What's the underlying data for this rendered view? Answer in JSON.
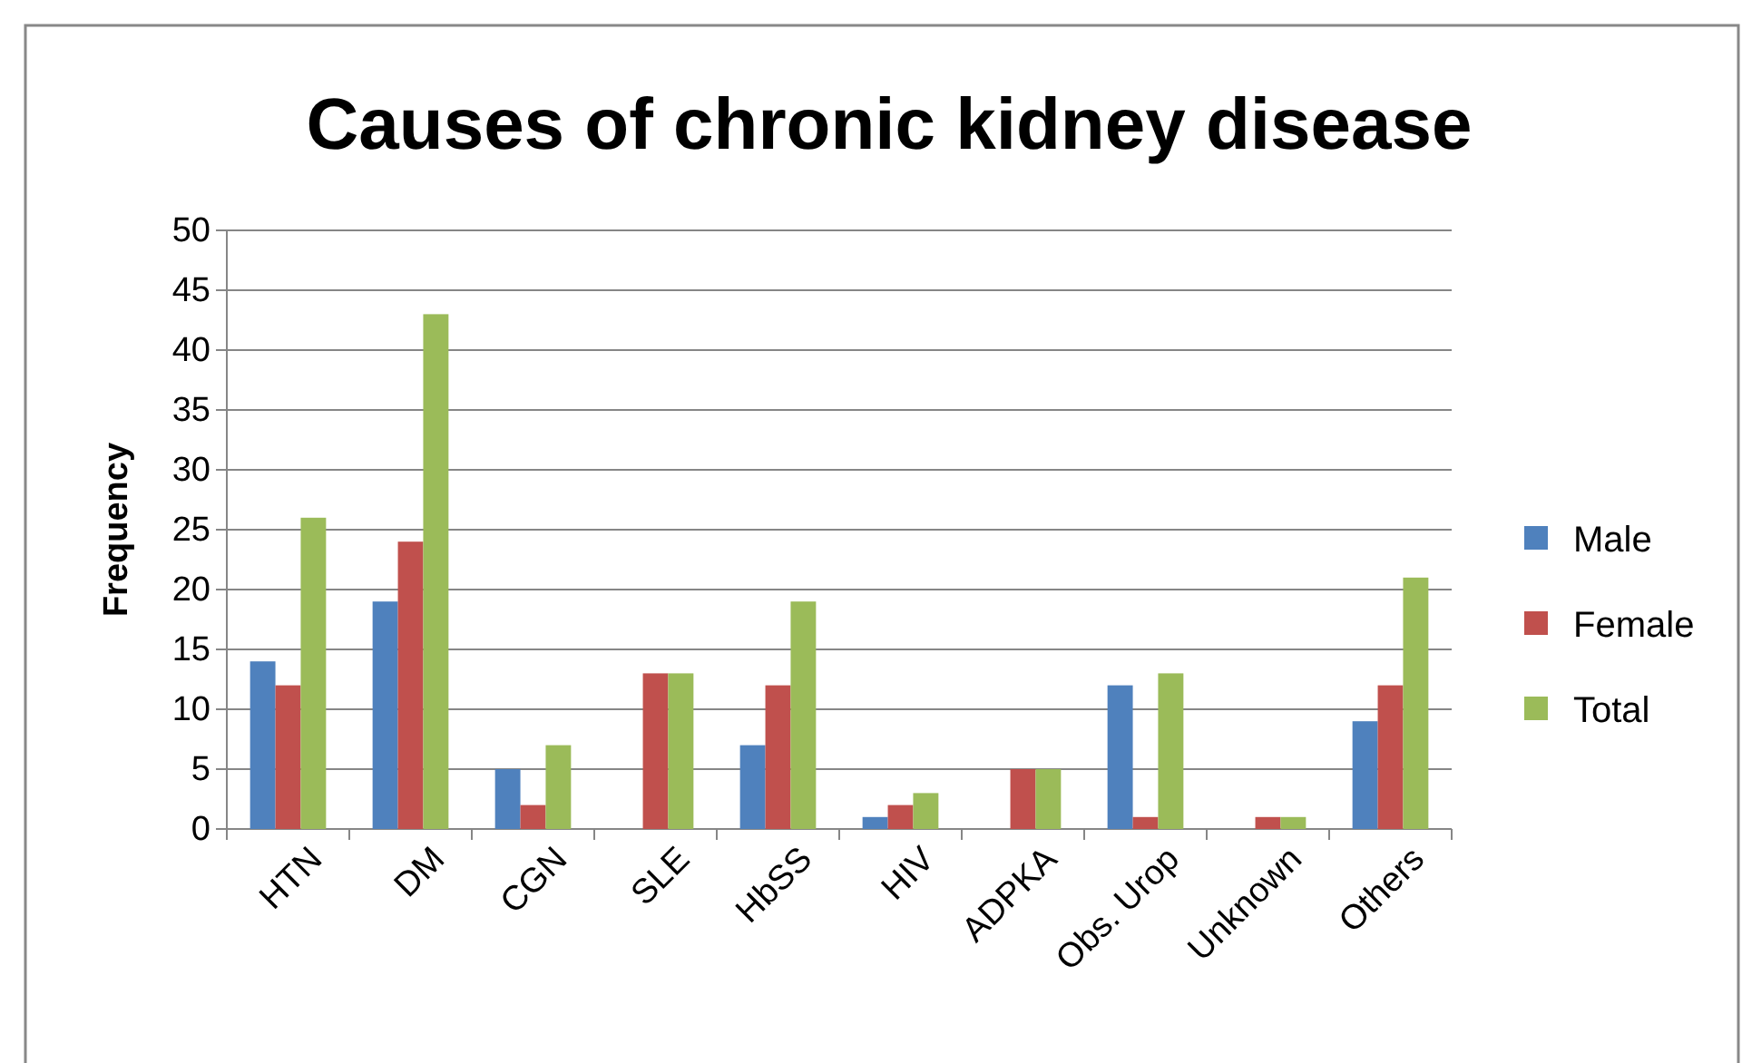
{
  "chart_data": {
    "type": "bar",
    "title": "Causes of chronic kidney disease",
    "ylabel": "Frequency",
    "categories": [
      "HTN",
      "DM",
      "CGN",
      "SLE",
      "HbSS",
      "HIV",
      "ADPKA",
      "Obs. Urop",
      "Unknown",
      "Others"
    ],
    "series": [
      {
        "name": "Male",
        "color": "#4f81bd",
        "values": [
          14,
          19,
          5,
          0,
          7,
          1,
          0,
          12,
          0,
          9
        ]
      },
      {
        "name": "Female",
        "color": "#c0504d",
        "values": [
          12,
          24,
          2,
          13,
          12,
          2,
          5,
          1,
          1,
          12
        ]
      },
      {
        "name": "Total",
        "color": "#9bbb59",
        "values": [
          26,
          43,
          7,
          13,
          19,
          3,
          5,
          13,
          1,
          21
        ]
      }
    ],
    "ylim": [
      0,
      50
    ],
    "yticks": [
      0,
      5,
      10,
      15,
      20,
      25,
      30,
      35,
      40,
      45,
      50
    ],
    "grid": "y",
    "legend": "right"
  }
}
